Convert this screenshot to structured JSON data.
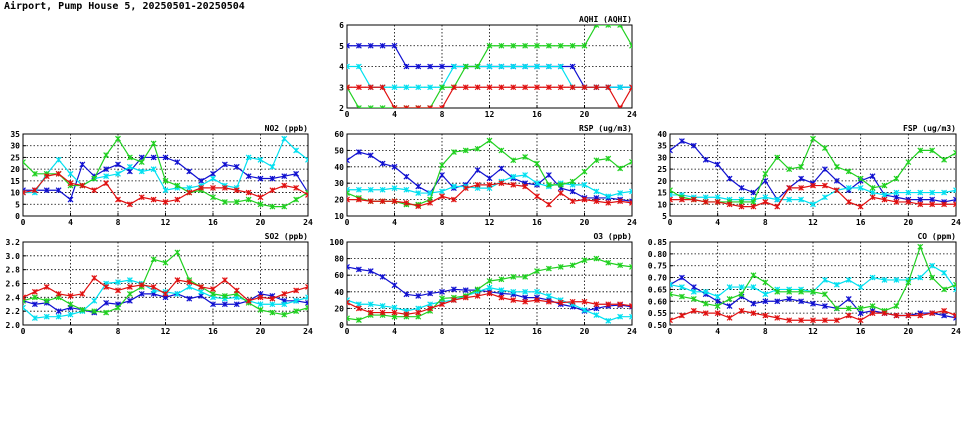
{
  "page_title": "Airport, Pump House 5, 20250501-20250504",
  "colors": {
    "blue": "#1010d0",
    "cyan": "#00e0f0",
    "green": "#20d020",
    "red": "#e01010"
  },
  "chart_data": [
    {
      "id": "aqhi",
      "type": "line",
      "title": "AQHI (AQHI)",
      "x": [
        0,
        1,
        2,
        3,
        4,
        5,
        6,
        7,
        8,
        9,
        10,
        11,
        12,
        13,
        14,
        15,
        16,
        17,
        18,
        19,
        20,
        21,
        22,
        23,
        24
      ],
      "xlim": [
        0,
        24
      ],
      "ylim": [
        2,
        6
      ],
      "xticks": [
        "0",
        "4",
        "8",
        "12",
        "16",
        "20",
        "24"
      ],
      "yticks": [
        "2",
        "3",
        "4",
        "5",
        "6"
      ],
      "series": [
        {
          "color": "#1010d0",
          "values": [
            5,
            5,
            5,
            5,
            5,
            4,
            4,
            4,
            4,
            4,
            4,
            4,
            4,
            4,
            4,
            4,
            4,
            4,
            4,
            4,
            3,
            3,
            3,
            3,
            3
          ]
        },
        {
          "color": "#00e0f0",
          "values": [
            4,
            4,
            3,
            3,
            3,
            3,
            3,
            3,
            3,
            4,
            4,
            4,
            4,
            4,
            4,
            4,
            4,
            4,
            4,
            3,
            3,
            3,
            3,
            3,
            3
          ]
        },
        {
          "color": "#20d020",
          "values": [
            3,
            2,
            2,
            2,
            2,
            2,
            2,
            2,
            3,
            3,
            4,
            4,
            5,
            5,
            5,
            5,
            5,
            5,
            5,
            5,
            5,
            6,
            6,
            6,
            5
          ]
        },
        {
          "color": "#e01010",
          "values": [
            3,
            3,
            3,
            3,
            2,
            2,
            2,
            2,
            2,
            3,
            3,
            3,
            3,
            3,
            3,
            3,
            3,
            3,
            3,
            3,
            3,
            3,
            3,
            2,
            3
          ]
        }
      ]
    },
    {
      "id": "no2",
      "type": "line",
      "title": "NO2 (ppb)",
      "x": [
        0,
        1,
        2,
        3,
        4,
        5,
        6,
        7,
        8,
        9,
        10,
        11,
        12,
        13,
        14,
        15,
        16,
        17,
        18,
        19,
        20,
        21,
        22,
        23,
        24
      ],
      "xlim": [
        0,
        24
      ],
      "ylim": [
        0,
        35
      ],
      "xticks": [
        "0",
        "4",
        "8",
        "12",
        "16",
        "20",
        "24"
      ],
      "yticks": [
        "0",
        "5",
        "10",
        "15",
        "20",
        "25",
        "30",
        "35"
      ],
      "series": [
        {
          "color": "#1010d0",
          "values": [
            11,
            11,
            11,
            11,
            7,
            22,
            17,
            20,
            22,
            19,
            25,
            25,
            25,
            23,
            19,
            15,
            18,
            22,
            21,
            17,
            16,
            16,
            17,
            18,
            10
          ]
        },
        {
          "color": "#00e0f0",
          "values": [
            10,
            10,
            18,
            24,
            18,
            13,
            16,
            17,
            18,
            21,
            19,
            20,
            11,
            12,
            12,
            13,
            16,
            13,
            12,
            25,
            24,
            21,
            33,
            28,
            24
          ]
        },
        {
          "color": "#20d020",
          "values": [
            23,
            18,
            18,
            18,
            13,
            13,
            16,
            26,
            33,
            25,
            23,
            31,
            15,
            13,
            10,
            11,
            8,
            6,
            6,
            7,
            5,
            4,
            4,
            7,
            10
          ]
        },
        {
          "color": "#e01010",
          "values": [
            10,
            11,
            17,
            18,
            14,
            13,
            11,
            14,
            7,
            5,
            8,
            7,
            6,
            7,
            10,
            12,
            12,
            12,
            11,
            10,
            8,
            11,
            13,
            12,
            9
          ]
        }
      ]
    },
    {
      "id": "rsp",
      "type": "line",
      "title": "RSP (ug/m3)",
      "x": [
        0,
        1,
        2,
        3,
        4,
        5,
        6,
        7,
        8,
        9,
        10,
        11,
        12,
        13,
        14,
        15,
        16,
        17,
        18,
        19,
        20,
        21,
        22,
        23,
        24
      ],
      "xlim": [
        0,
        24
      ],
      "ylim": [
        10,
        60
      ],
      "xticks": [
        "0",
        "4",
        "8",
        "12",
        "16",
        "20",
        "24"
      ],
      "yticks": [
        "10",
        "20",
        "30",
        "40",
        "50",
        "60"
      ],
      "series": [
        {
          "color": "#1010d0",
          "values": [
            44,
            49,
            47,
            42,
            40,
            34,
            28,
            24,
            35,
            27,
            29,
            38,
            33,
            39,
            33,
            30,
            29,
            35,
            27,
            25,
            21,
            21,
            21,
            20,
            19
          ]
        },
        {
          "color": "#00e0f0",
          "values": [
            26,
            26,
            26,
            26,
            27,
            26,
            24,
            24,
            25,
            28,
            28,
            27,
            27,
            31,
            34,
            35,
            30,
            28,
            30,
            29,
            29,
            25,
            22,
            24,
            25
          ]
        },
        {
          "color": "#20d020",
          "values": [
            24,
            21,
            19,
            19,
            19,
            17,
            17,
            20,
            41,
            49,
            50,
            51,
            56,
            50,
            44,
            46,
            42,
            29,
            29,
            31,
            37,
            44,
            45,
            39,
            43
          ]
        },
        {
          "color": "#e01010",
          "values": [
            20,
            20,
            19,
            19,
            19,
            18,
            16,
            18,
            22,
            20,
            27,
            29,
            29,
            30,
            29,
            28,
            22,
            17,
            24,
            19,
            20,
            19,
            18,
            19,
            18
          ]
        }
      ]
    },
    {
      "id": "fsp",
      "type": "line",
      "title": "FSP (ug/m3)",
      "x": [
        0,
        1,
        2,
        3,
        4,
        5,
        6,
        7,
        8,
        9,
        10,
        11,
        12,
        13,
        14,
        15,
        16,
        17,
        18,
        19,
        20,
        21,
        22,
        23,
        24
      ],
      "xlim": [
        0,
        24
      ],
      "ylim": [
        5,
        40
      ],
      "xticks": [
        "0",
        "4",
        "8",
        "12",
        "16",
        "20",
        "24"
      ],
      "yticks": [
        "5",
        "10",
        "15",
        "20",
        "25",
        "30",
        "35",
        "40"
      ],
      "series": [
        {
          "color": "#1010d0",
          "values": [
            33,
            37,
            35,
            29,
            27,
            21,
            17,
            15,
            20,
            12,
            17,
            21,
            19,
            25,
            20,
            16,
            20,
            22,
            14,
            13,
            12,
            12,
            12,
            11,
            12
          ]
        },
        {
          "color": "#00e0f0",
          "values": [
            14,
            14,
            13,
            13,
            13,
            12,
            12,
            12,
            13,
            12,
            12,
            12,
            10,
            13,
            16,
            17,
            17,
            15,
            14,
            15,
            15,
            15,
            15,
            15,
            16
          ]
        },
        {
          "color": "#20d020",
          "values": [
            16,
            13,
            12,
            11,
            11,
            11,
            11,
            11,
            23,
            30,
            25,
            26,
            38,
            34,
            26,
            24,
            21,
            17,
            18,
            21,
            28,
            33,
            33,
            29,
            32
          ]
        },
        {
          "color": "#e01010",
          "values": [
            12,
            12,
            12,
            11,
            11,
            10,
            9,
            9,
            11,
            9,
            17,
            17,
            18,
            18,
            16,
            11,
            9,
            13,
            12,
            11,
            11,
            10,
            10,
            10,
            10
          ]
        }
      ]
    },
    {
      "id": "so2",
      "type": "line",
      "title": "SO2 (ppb)",
      "x": [
        0,
        1,
        2,
        3,
        4,
        5,
        6,
        7,
        8,
        9,
        10,
        11,
        12,
        13,
        14,
        15,
        16,
        17,
        18,
        19,
        20,
        21,
        22,
        23,
        24
      ],
      "xlim": [
        0,
        24
      ],
      "ylim": [
        2.0,
        3.2
      ],
      "xticks": [
        "0",
        "4",
        "8",
        "12",
        "16",
        "20",
        "24"
      ],
      "yticks": [
        "2.0",
        "2.2",
        "2.4",
        "2.6",
        "2.8",
        "3.0",
        "3.2"
      ],
      "series": [
        {
          "color": "#1010d0",
          "values": [
            2.35,
            2.3,
            2.32,
            2.2,
            2.25,
            2.22,
            2.18,
            2.32,
            2.3,
            2.35,
            2.45,
            2.45,
            2.4,
            2.45,
            2.38,
            2.42,
            2.3,
            2.3,
            2.3,
            2.35,
            2.45,
            2.42,
            2.35,
            2.35,
            2.32
          ]
        },
        {
          "color": "#00e0f0",
          "values": [
            2.25,
            2.1,
            2.12,
            2.12,
            2.15,
            2.2,
            2.35,
            2.6,
            2.62,
            2.65,
            2.6,
            2.5,
            2.48,
            2.45,
            2.55,
            2.48,
            2.4,
            2.38,
            2.4,
            2.35,
            2.3,
            2.3,
            2.3,
            2.35,
            2.4
          ]
        },
        {
          "color": "#20d020",
          "values": [
            2.35,
            2.4,
            2.35,
            2.4,
            2.3,
            2.22,
            2.2,
            2.18,
            2.25,
            2.45,
            2.55,
            2.95,
            2.9,
            3.05,
            2.65,
            2.55,
            2.45,
            2.42,
            2.45,
            2.32,
            2.22,
            2.18,
            2.15,
            2.2,
            2.25
          ]
        },
        {
          "color": "#e01010",
          "values": [
            2.4,
            2.48,
            2.55,
            2.45,
            2.42,
            2.45,
            2.68,
            2.55,
            2.5,
            2.55,
            2.58,
            2.55,
            2.45,
            2.65,
            2.62,
            2.55,
            2.52,
            2.65,
            2.5,
            2.35,
            2.4,
            2.38,
            2.45,
            2.5,
            2.55
          ]
        }
      ]
    },
    {
      "id": "o3",
      "type": "line",
      "title": "O3 (ppb)",
      "x": [
        0,
        1,
        2,
        3,
        4,
        5,
        6,
        7,
        8,
        9,
        10,
        11,
        12,
        13,
        14,
        15,
        16,
        17,
        18,
        19,
        20,
        21,
        22,
        23,
        24
      ],
      "xlim": [
        0,
        24
      ],
      "ylim": [
        0,
        100
      ],
      "xticks": [
        "0",
        "4",
        "8",
        "12",
        "16",
        "20",
        "24"
      ],
      "yticks": [
        "0",
        "20",
        "40",
        "60",
        "80",
        "100"
      ],
      "series": [
        {
          "color": "#1010d0",
          "values": [
            70,
            67,
            65,
            58,
            48,
            37,
            35,
            38,
            40,
            43,
            42,
            42,
            40,
            38,
            37,
            33,
            33,
            30,
            25,
            22,
            17,
            20,
            23,
            24,
            22
          ]
        },
        {
          "color": "#00e0f0",
          "values": [
            30,
            25,
            25,
            23,
            21,
            17,
            20,
            25,
            28,
            30,
            35,
            40,
            45,
            42,
            40,
            40,
            40,
            35,
            30,
            25,
            18,
            12,
            5,
            10,
            10
          ]
        },
        {
          "color": "#20d020",
          "values": [
            8,
            6,
            12,
            12,
            10,
            10,
            10,
            17,
            32,
            33,
            35,
            43,
            53,
            55,
            58,
            58,
            65,
            68,
            70,
            72,
            78,
            80,
            75,
            72,
            70
          ]
        },
        {
          "color": "#e01010",
          "values": [
            27,
            20,
            15,
            15,
            15,
            13,
            15,
            20,
            25,
            30,
            33,
            35,
            38,
            33,
            30,
            28,
            30,
            28,
            27,
            28,
            28,
            25,
            25,
            25,
            23
          ]
        }
      ]
    },
    {
      "id": "co",
      "type": "line",
      "title": "CO (ppm)",
      "x": [
        0,
        1,
        2,
        3,
        4,
        5,
        6,
        7,
        8,
        9,
        10,
        11,
        12,
        13,
        14,
        15,
        16,
        17,
        18,
        19,
        20,
        21,
        22,
        23,
        24
      ],
      "xlim": [
        0,
        24
      ],
      "ylim": [
        0.5,
        0.85
      ],
      "xticks": [
        "0",
        "4",
        "8",
        "12",
        "16",
        "20",
        "24"
      ],
      "yticks": [
        "0.50",
        "0.55",
        "0.60",
        "0.65",
        "0.70",
        "0.75",
        "0.80",
        "0.85"
      ],
      "series": [
        {
          "color": "#1010d0",
          "values": [
            0.67,
            0.7,
            0.66,
            0.63,
            0.6,
            0.58,
            0.62,
            0.59,
            0.6,
            0.6,
            0.61,
            0.6,
            0.59,
            0.58,
            0.57,
            0.61,
            0.55,
            0.56,
            0.55,
            0.54,
            0.54,
            0.55,
            0.55,
            0.54,
            0.53
          ]
        },
        {
          "color": "#00e0f0",
          "values": [
            0.67,
            0.66,
            0.64,
            0.64,
            0.62,
            0.66,
            0.66,
            0.66,
            0.63,
            0.65,
            0.65,
            0.65,
            0.64,
            0.69,
            0.67,
            0.69,
            0.66,
            0.7,
            0.69,
            0.69,
            0.69,
            0.7,
            0.75,
            0.72,
            0.65
          ]
        },
        {
          "color": "#20d020",
          "values": [
            0.63,
            0.62,
            0.61,
            0.59,
            0.58,
            0.61,
            0.63,
            0.71,
            0.68,
            0.64,
            0.64,
            0.64,
            0.64,
            0.63,
            0.57,
            0.57,
            0.57,
            0.58,
            0.56,
            0.58,
            0.68,
            0.83,
            0.7,
            0.65,
            0.67
          ]
        },
        {
          "color": "#e01010",
          "values": [
            0.52,
            0.54,
            0.56,
            0.55,
            0.55,
            0.53,
            0.56,
            0.55,
            0.54,
            0.53,
            0.52,
            0.52,
            0.52,
            0.52,
            0.52,
            0.54,
            0.52,
            0.55,
            0.55,
            0.54,
            0.54,
            0.54,
            0.55,
            0.56,
            0.54
          ]
        }
      ]
    }
  ]
}
